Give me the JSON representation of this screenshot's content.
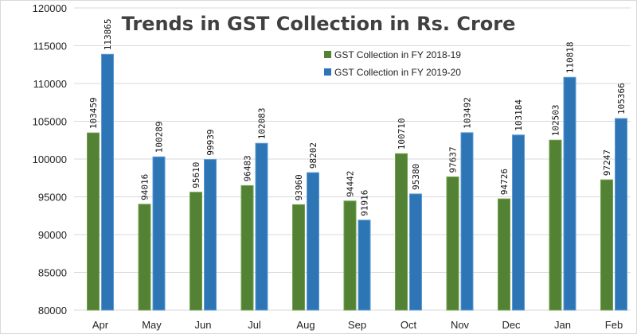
{
  "chart_data": {
    "type": "bar",
    "title": "Trends in GST Collection in Rs. Crore",
    "xlabel": "",
    "ylabel": "",
    "ylim": [
      80000,
      120000
    ],
    "yticks": [
      80000,
      85000,
      90000,
      95000,
      100000,
      105000,
      110000,
      115000,
      120000
    ],
    "grid": true,
    "legend_position": "top-right",
    "categories": [
      "Apr",
      "May",
      "Jun",
      "Jul",
      "Aug",
      "Sep",
      "Oct",
      "Nov",
      "Dec",
      "Jan",
      "Feb"
    ],
    "series": [
      {
        "name": "GST Collection in FY 2018-19",
        "color": "#548235",
        "values": [
          103459,
          94016,
          95610,
          96483,
          93960,
          94442,
          100710,
          97637,
          94726,
          102503,
          97247
        ]
      },
      {
        "name": "GST Collection in FY 2019-20",
        "color": "#2e75b6",
        "values": [
          113865,
          100289,
          99939,
          102083,
          98202,
          91916,
          95380,
          103492,
          103184,
          110818,
          105366
        ]
      }
    ]
  }
}
